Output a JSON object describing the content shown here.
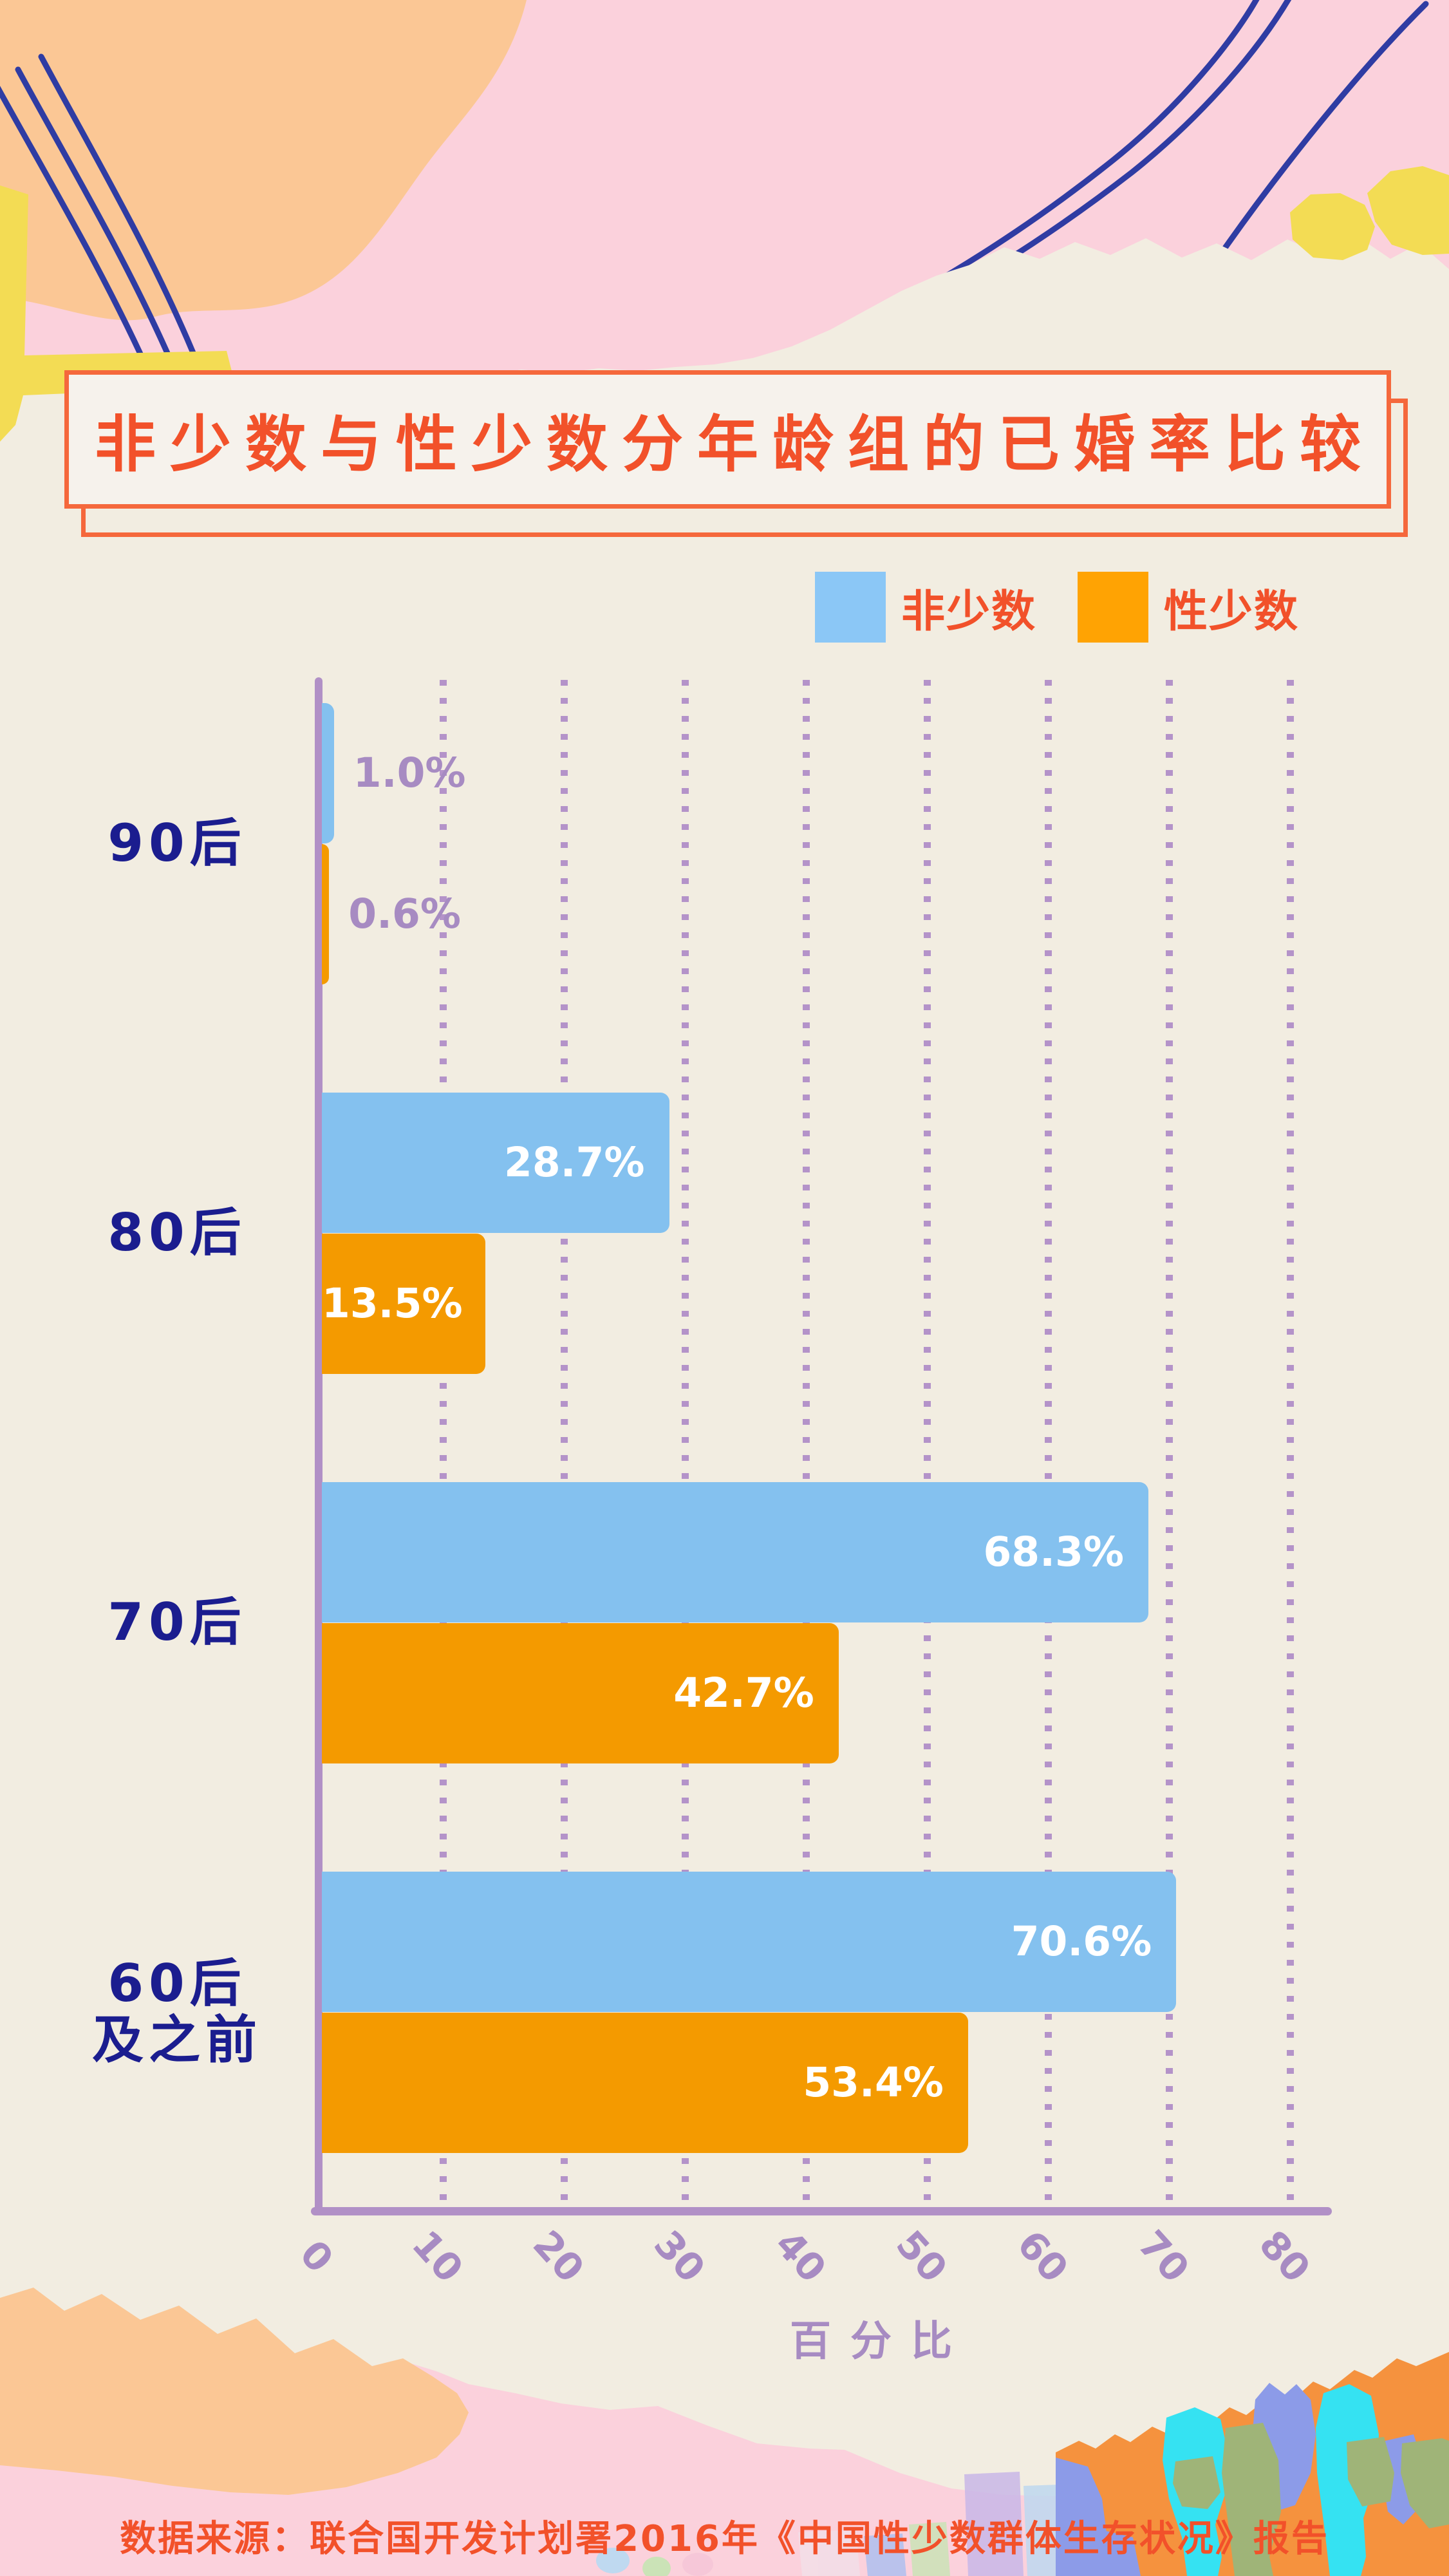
{
  "title": {
    "text": "非少数与性少数分年龄组的已婚率比较",
    "text_color": "#F2512A",
    "border_color": "#F5683C",
    "box_bg": "#F6F2EC"
  },
  "legend": {
    "items": [
      {
        "label": "非少数",
        "swatch_color": "#8BC7F6"
      },
      {
        "label": "性少数",
        "swatch_color": "#FFA303"
      }
    ],
    "text_color": "#F2512A"
  },
  "chart_data": {
    "type": "bar",
    "orientation": "horizontal",
    "title": "非少数与性少数分年龄组的已婚率比较",
    "categories": [
      "90后",
      "80后",
      "70后",
      "60后\n及之前"
    ],
    "series": [
      {
        "name": "非少数",
        "color": "#84C1EF",
        "values": [
          1.0,
          28.7,
          68.3,
          70.6
        ]
      },
      {
        "name": "性少数",
        "color": "#F49A00",
        "values": [
          0.6,
          13.5,
          42.7,
          53.4
        ]
      }
    ],
    "value_label_format": "{value}%",
    "xlabel": "百分比",
    "xticks": [
      0,
      10,
      20,
      30,
      40,
      50,
      60,
      70,
      80
    ],
    "xlim": [
      0,
      80
    ],
    "grid": "dotted vertical gridlines every 10",
    "legend_position": "top-right above plot",
    "axis_color": "#B190C6",
    "tick_label_color": "#A78BC2",
    "category_label_color": "#1B1D8F",
    "value_label_inside_color": "#FFFFFF",
    "value_label_outside_color": "#A78BC2"
  },
  "source": {
    "text": "数据来源：联合国开发计划署2016年《中国性少数群体生存状况》报告",
    "color": "#F2512A"
  },
  "decor_colors": {
    "cream": "#F2EDE1",
    "pink": "#FBD1DC",
    "peach": "#FBC795",
    "yellow": "#F3DC54",
    "navy_lines": "#2F3CA3",
    "stripe_orange": "#F5923E",
    "stripe_periwinkle": "#8C9BE8",
    "stripe_cyan": "#35E2F2",
    "stripe_green": "#9FB478"
  }
}
